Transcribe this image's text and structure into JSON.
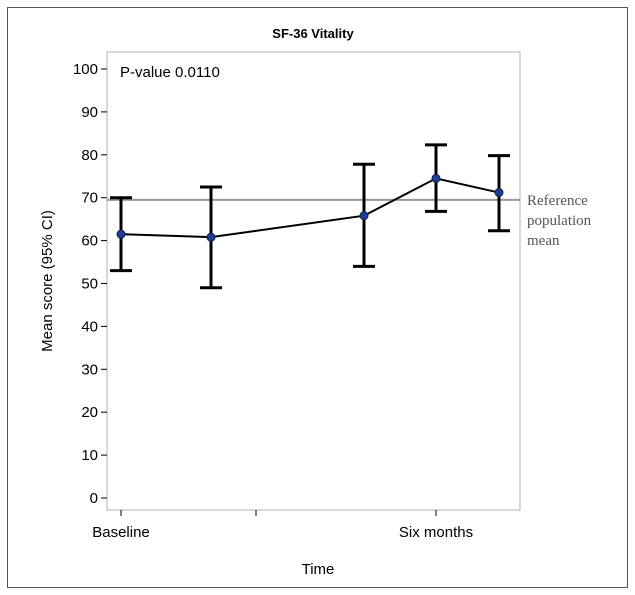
{
  "chart_data": {
    "type": "line",
    "title": "SF-36 Vitality",
    "xlabel": "Time",
    "ylabel": "Mean score (95% CI)",
    "annotation": "P-value 0.0110",
    "ylim": [
      0,
      100
    ],
    "yticks": [
      0,
      10,
      20,
      30,
      40,
      50,
      60,
      70,
      80,
      90,
      100
    ],
    "x_tick_labels": [
      "Baseline",
      "",
      "Six months"
    ],
    "x_tick_positions": [
      0,
      1.5,
      3.5
    ],
    "xlim": [
      -0.3,
      4.3
    ],
    "points": [
      {
        "x": 0,
        "mean": 61.5,
        "lower": 53,
        "upper": 70
      },
      {
        "x": 1,
        "mean": 60.8,
        "lower": 49,
        "upper": 72.5
      },
      {
        "x": 2.7,
        "mean": 65.8,
        "lower": 54,
        "upper": 77.8
      },
      {
        "x": 3.5,
        "mean": 74.5,
        "lower": 66.8,
        "upper": 82.3
      },
      {
        "x": 4.2,
        "mean": 71.2,
        "lower": 62.3,
        "upper": 79.8
      }
    ],
    "reference_line": {
      "value": 69.5,
      "label_lines": [
        "Reference",
        "population",
        "mean"
      ]
    },
    "grid": false,
    "colors": {
      "line": "#000000",
      "marker": "#1f3f8f",
      "reference": "#999999",
      "frame": "#b0b0b0"
    }
  }
}
